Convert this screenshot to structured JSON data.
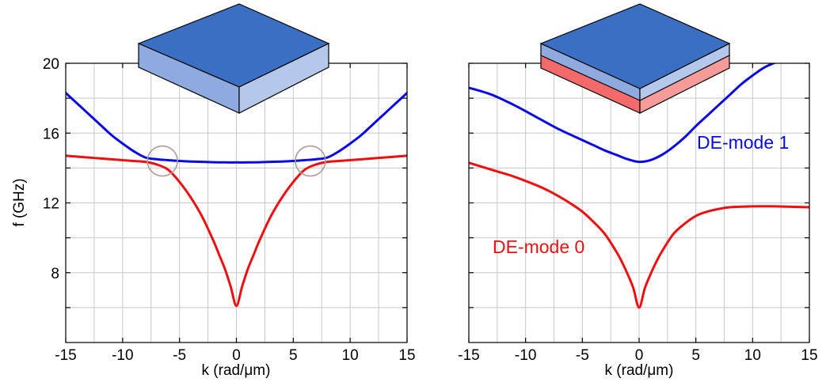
{
  "colors": {
    "mode1": "#0a0ae6",
    "mode0": "#ee1010",
    "grid": "#c8c8c8",
    "slab_top": "#3a6fc4",
    "slab_side_light": "#b3c8ea",
    "slab_side_mid": "#8eaadf",
    "substrate_front": "#f46a6a",
    "substrate_side": "#f79a9a",
    "circle": "#b09a98"
  },
  "chart_data": [
    {
      "type": "line",
      "panel": "left",
      "xlabel": "k (rad/μm)",
      "ylabel": "f (GHz)",
      "xlim": [
        -15,
        15
      ],
      "ylim": [
        4,
        20
      ],
      "xticks": [
        "-15",
        "-10",
        "-5",
        "0",
        "5",
        "10",
        "15"
      ],
      "yticks": [
        "8",
        "12",
        "16",
        "20"
      ],
      "grid": true,
      "inset_icon": "magnetic-slab-icon",
      "crossing_markers": [
        {
          "x": -6.5,
          "y": 14.4
        },
        {
          "x": 6.5,
          "y": 14.4
        }
      ],
      "series": [
        {
          "color": "mode1",
          "x": [
            -15,
            -14,
            -13,
            -12,
            -11,
            -10,
            -9,
            -8,
            -7,
            -6.5,
            -6,
            -5,
            -4,
            -3,
            -2,
            -1,
            0,
            1,
            2,
            3,
            4,
            5,
            6,
            6.5,
            7,
            8,
            9,
            10,
            11,
            12,
            13,
            14,
            15
          ],
          "y": [
            18.3,
            17.7,
            17.1,
            16.5,
            15.9,
            15.4,
            14.95,
            14.6,
            14.5,
            14.47,
            14.45,
            14.4,
            14.37,
            14.35,
            14.33,
            14.32,
            14.32,
            14.32,
            14.33,
            14.35,
            14.37,
            14.4,
            14.45,
            14.47,
            14.5,
            14.6,
            14.95,
            15.4,
            15.9,
            16.5,
            17.1,
            17.7,
            18.3
          ]
        },
        {
          "color": "mode0",
          "x": [
            -15,
            -14,
            -13,
            -12,
            -11,
            -10,
            -9,
            -8,
            -7,
            -6,
            -5,
            -4,
            -3,
            -2,
            -1.5,
            -1,
            -0.5,
            0,
            0.5,
            1,
            1.5,
            2,
            3,
            4,
            5,
            6,
            7,
            8,
            9,
            10,
            11,
            12,
            13,
            14,
            15
          ],
          "y": [
            14.7,
            14.65,
            14.6,
            14.55,
            14.5,
            14.45,
            14.4,
            14.35,
            14.2,
            13.9,
            13.2,
            12.3,
            11.2,
            9.8,
            9.0,
            8.2,
            7.2,
            6.1,
            7.2,
            8.2,
            9.0,
            9.8,
            11.2,
            12.3,
            13.2,
            13.9,
            14.2,
            14.35,
            14.4,
            14.45,
            14.5,
            14.55,
            14.6,
            14.65,
            14.7
          ]
        }
      ]
    },
    {
      "type": "line",
      "panel": "right",
      "xlabel": "k (rad/μm)",
      "xlim": [
        -15,
        15
      ],
      "ylim": [
        4,
        20
      ],
      "xticks": [
        "-15",
        "-10",
        "-5",
        "0",
        "5",
        "10",
        "15"
      ],
      "grid": true,
      "inset_icon": "slab-on-substrate-icon",
      "series": [
        {
          "name": "DE-mode 1",
          "color": "mode1",
          "x": [
            -15,
            -13,
            -11,
            -9,
            -7,
            -5,
            -4,
            -3,
            -2,
            -1,
            0,
            1,
            2,
            3,
            4,
            5,
            6,
            7,
            8,
            9,
            10,
            11,
            12
          ],
          "y": [
            18.6,
            18.2,
            17.6,
            16.9,
            16.2,
            15.6,
            15.3,
            15.0,
            14.75,
            14.5,
            14.35,
            14.45,
            14.75,
            15.2,
            15.75,
            16.4,
            17.0,
            17.6,
            18.2,
            18.8,
            19.3,
            19.75,
            20.05
          ]
        },
        {
          "name": "DE-mode 0",
          "color": "mode0",
          "x": [
            -15,
            -13,
            -11,
            -9,
            -8,
            -7,
            -6,
            -5,
            -4,
            -3,
            -2,
            -1.5,
            -1,
            -0.5,
            0,
            0.5,
            1,
            1.5,
            2,
            3,
            4,
            5,
            6,
            7,
            8,
            10,
            12,
            15
          ],
          "y": [
            14.3,
            13.9,
            13.5,
            13.0,
            12.7,
            12.35,
            11.95,
            11.5,
            10.9,
            10.2,
            9.2,
            8.6,
            7.9,
            7.1,
            6.0,
            7.1,
            7.9,
            8.6,
            9.2,
            10.2,
            10.8,
            11.25,
            11.5,
            11.65,
            11.75,
            11.8,
            11.8,
            11.75
          ]
        }
      ]
    }
  ]
}
